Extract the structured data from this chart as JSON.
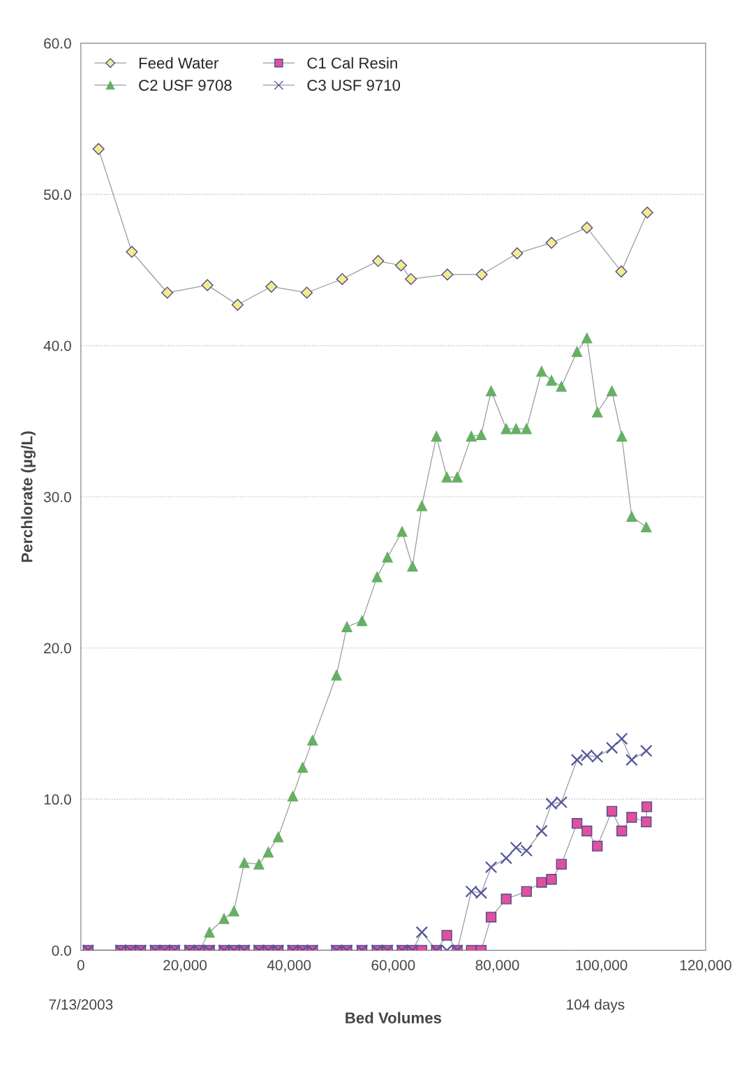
{
  "chart_data": {
    "type": "line",
    "xlabel": "Bed Volumes",
    "ylabel": "Perchlorate (µg/L)",
    "x": [
      1400,
      7650,
      9570,
      11500,
      14300,
      16100,
      18000,
      20900,
      22700,
      24700,
      27500,
      29400,
      31400,
      34200,
      36000,
      37900,
      40700,
      42600,
      44500,
      49100,
      51100,
      54000,
      56900,
      58900,
      61700,
      63700,
      65500,
      68300,
      70300,
      72300,
      75000,
      76900,
      78800,
      81700,
      83600,
      85600,
      88500,
      90400,
      92300,
      95300,
      97200,
      99200,
      102000,
      103900,
      105800,
      108600
    ],
    "series": [
      {
        "name": "Feed Water",
        "color": "#f3ec8a",
        "marker": "diamond",
        "x": [
          3400,
          9800,
          16600,
          24300,
          30100,
          36600,
          43400,
          50200,
          57100,
          61500,
          63400,
          70400,
          77000,
          83800,
          90400,
          97200,
          103800,
          108800
        ],
        "values": [
          53.0,
          46.2,
          43.5,
          44.0,
          42.7,
          43.9,
          43.5,
          44.4,
          45.6,
          45.3,
          44.4,
          44.7,
          44.7,
          46.1,
          46.8,
          47.8,
          44.9,
          48.8
        ]
      },
      {
        "name": "C2 USF 9708",
        "color": "#66b066",
        "marker": "triangle",
        "values": [
          0,
          0,
          0,
          0,
          0,
          0,
          0,
          0,
          0,
          1.2,
          2.1,
          2.6,
          5.8,
          5.7,
          6.5,
          7.5,
          10.2,
          12.1,
          13.9,
          18.2,
          21.4,
          21.8,
          24.7,
          26.0,
          27.7,
          25.4,
          29.4,
          34.0,
          31.3,
          31.3,
          34.0,
          34.1,
          37.0,
          34.5,
          34.5,
          34.5,
          38.3,
          37.7,
          37.3,
          39.6,
          40.5,
          35.6,
          37.0,
          34.0,
          28.7,
          28.0
        ]
      },
      {
        "name": "C1 Cal Resin",
        "color": "#e0509c",
        "marker": "square",
        "x": [
          1400,
          7650,
          9570,
          11500,
          14300,
          16100,
          18000,
          20900,
          22700,
          24700,
          27500,
          29400,
          31400,
          34200,
          36000,
          37900,
          40700,
          42600,
          44500,
          49100,
          51100,
          54000,
          56900,
          58900,
          61700,
          63700,
          65500,
          68300,
          70300,
          72300,
          75000,
          76900,
          78800,
          81700,
          85600,
          88500,
          90400,
          92300,
          95300,
          97200,
          99200,
          102000,
          103900,
          105800,
          108600,
          108700
        ],
        "values": [
          0,
          0,
          0,
          0,
          0,
          0,
          0,
          0,
          0,
          0,
          0,
          0,
          0,
          0,
          0,
          0,
          0,
          0,
          0,
          0,
          0,
          0,
          0,
          0,
          0,
          0,
          0,
          0,
          1.0,
          0,
          0,
          0,
          2.2,
          3.4,
          3.9,
          4.5,
          4.7,
          5.7,
          8.4,
          7.9,
          6.9,
          9.2,
          7.9,
          8.8,
          8.5,
          9.5
        ]
      },
      {
        "name": "C3 USF 9710",
        "color": "#55559a",
        "marker": "cross",
        "values": [
          0,
          0,
          0,
          0,
          0,
          0,
          0,
          0,
          0,
          0,
          0,
          0,
          0,
          0,
          0,
          0,
          0,
          0,
          0,
          0,
          0,
          0,
          0,
          0,
          0,
          0,
          1.2,
          0,
          0,
          0,
          3.9,
          3.8,
          5.5,
          6.1,
          6.8,
          6.6,
          7.9,
          9.7,
          9.8,
          12.6,
          12.9,
          12.8,
          13.4,
          14.0,
          12.6,
          13.2
        ]
      }
    ],
    "xlim": [
      0,
      120000
    ],
    "xticks": [
      {
        "value": 0,
        "label": "0"
      },
      {
        "value": 20000,
        "label": "20,000"
      },
      {
        "value": 40000,
        "label": "40,000"
      },
      {
        "value": 60000,
        "label": "60,000"
      },
      {
        "value": 80000,
        "label": "80,000"
      },
      {
        "value": 100000,
        "label": "100,000"
      },
      {
        "value": 120000,
        "label": "120,000"
      }
    ],
    "ylim": [
      0,
      60
    ],
    "yticks": [
      {
        "value": 0,
        "label": "0.0"
      },
      {
        "value": 10,
        "label": "10.0"
      },
      {
        "value": 20,
        "label": "20.0"
      },
      {
        "value": 30,
        "label": "30.0"
      },
      {
        "value": 40,
        "label": "40.0"
      },
      {
        "value": 50,
        "label": "50.0"
      },
      {
        "value": 60,
        "label": "60.0"
      }
    ],
    "grid": "y",
    "legend": "top left",
    "annotations": [
      "7/13/2003",
      "104 days"
    ]
  }
}
